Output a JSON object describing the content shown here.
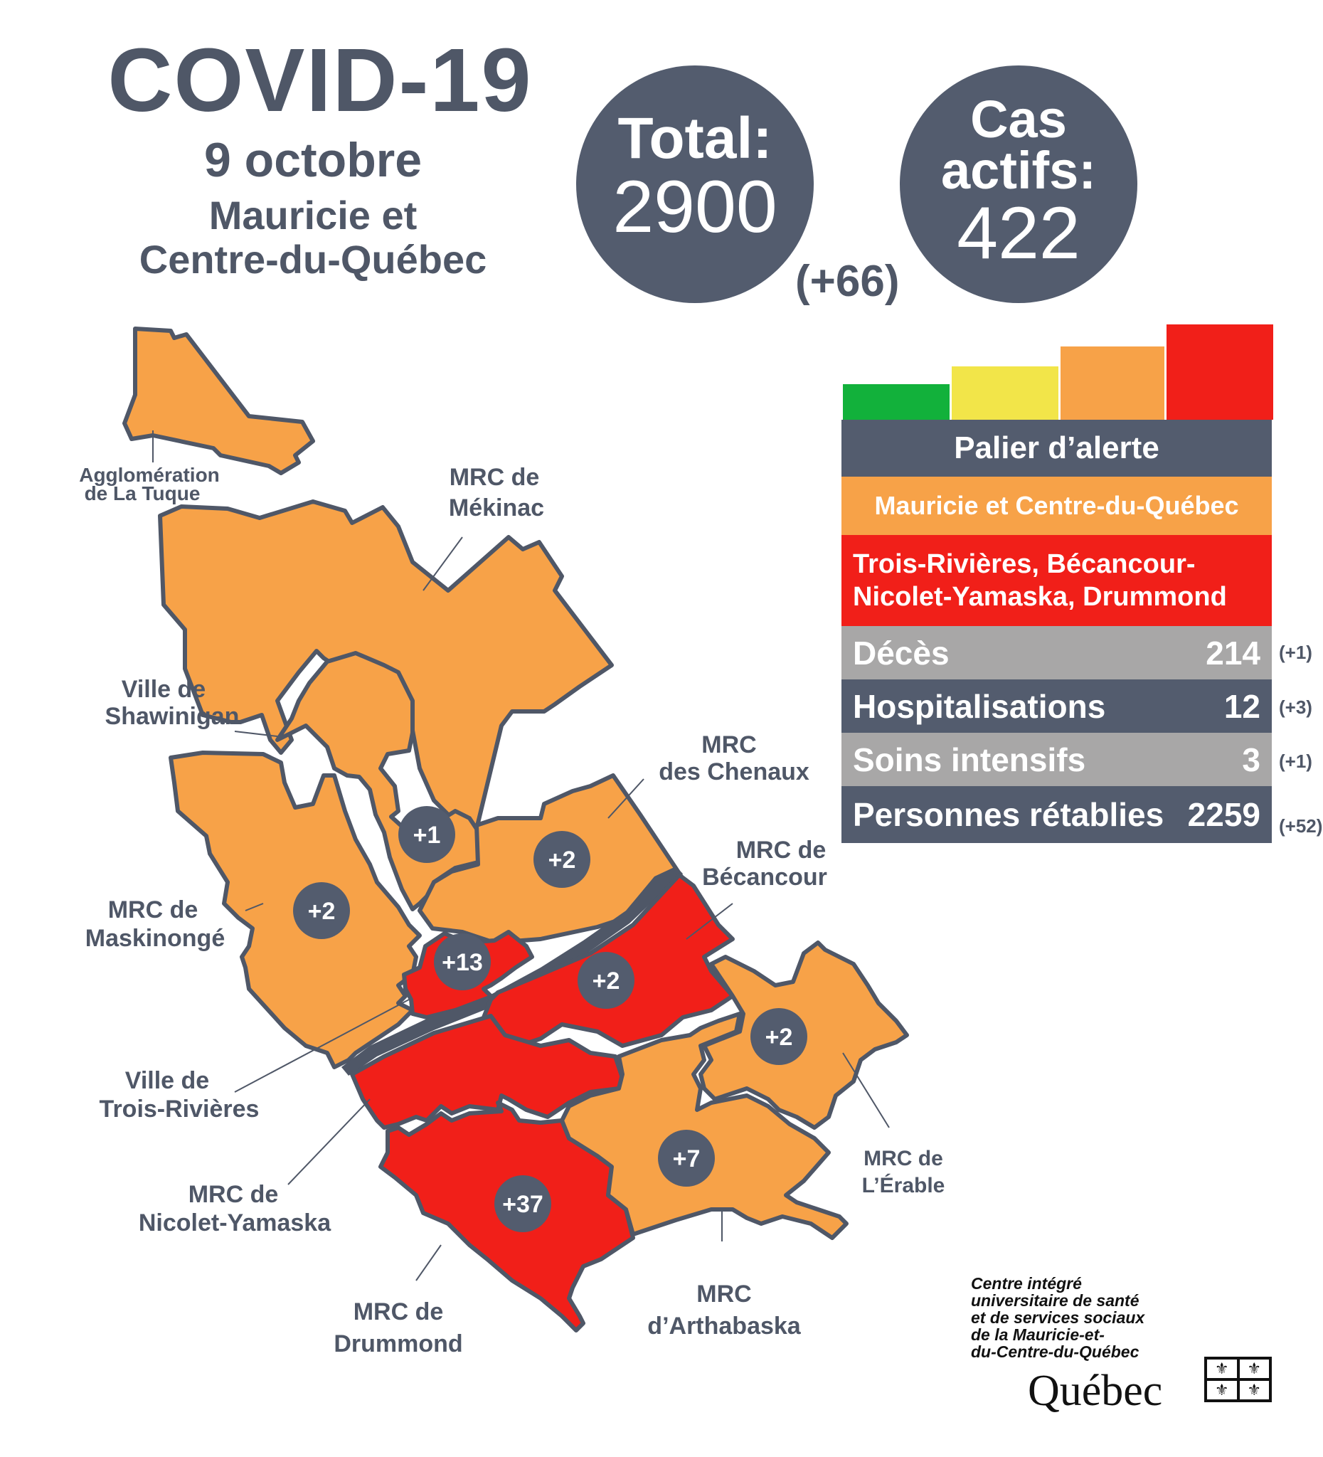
{
  "header": {
    "title": "COVID-19",
    "date": "9 octobre",
    "region_line1": "Mauricie et",
    "region_line2": "Centre-du-Québec"
  },
  "totals": {
    "total_label": "Total:",
    "total_value": "2900",
    "total_delta": "(+66)",
    "active_label_1": "Cas",
    "active_label_2": "actifs:",
    "active_value": "422"
  },
  "alert": {
    "scale_colors": [
      "#12b13b",
      "#f2e549",
      "#f7a248",
      "#f11f19"
    ],
    "title": "Palier d’alerte",
    "orange_regions": "Mauricie et Centre-du-Québec",
    "red_regions_line1": "Trois-Rivières, Bécancour-",
    "red_regions_line2": "Nicolet-Yamaska, Drummond",
    "orange_color": "#f7a248",
    "red_color": "#f11f19"
  },
  "stats": [
    {
      "label": "Décès",
      "value": "214",
      "delta": "(+1)"
    },
    {
      "label": "Hospitalisations",
      "value": "12",
      "delta": "(+3)"
    },
    {
      "label": "Soins intensifs",
      "value": "3",
      "delta": "(+1)"
    },
    {
      "label": "Personnes rétablies",
      "value": "2259",
      "delta": "(+52)"
    }
  ],
  "map": {
    "labels": {
      "la_tuque_1": "Agglomération",
      "la_tuque_2": "de La Tuque",
      "mekinac_1": "MRC de",
      "mekinac_2": "Mékinac",
      "shawinigan_1": "Ville de",
      "shawinigan_2": "Shawinigan",
      "chenaux_1": "MRC",
      "chenaux_2": "des Chenaux",
      "becancour_1": "MRC de",
      "becancour_2": "Bécancour",
      "maskinonge_1": "MRC de",
      "maskinonge_2": "Maskinongé",
      "trois_rivieres_1": "Ville de",
      "trois_rivieres_2": "Trois-Rivières",
      "nicolet_1": "MRC de",
      "nicolet_2": "Nicolet-Yamaska",
      "drummond_1": "MRC de",
      "drummond_2": "Drummond",
      "arthabaska_1": "MRC",
      "arthabaska_2": "d’Arthabaska",
      "erable_1": "MRC de",
      "erable_2": "L’Érable"
    },
    "badges": {
      "shawinigan": "+1",
      "chenaux": "+2",
      "maskinonge": "+2",
      "trois_rivieres": "+13",
      "becancour": "+2",
      "erable": "+2",
      "arthabaska": "+7",
      "drummond": "+37"
    }
  },
  "footer": {
    "cisss_1": "Centre intégré",
    "cisss_2": "universitaire de santé",
    "cisss_3": "et de services sociaux",
    "cisss_4": "de la Mauricie-et-",
    "cisss_5": "du-Centre-du-Québec",
    "quebec": "Québec",
    "fleur": "⚜"
  }
}
